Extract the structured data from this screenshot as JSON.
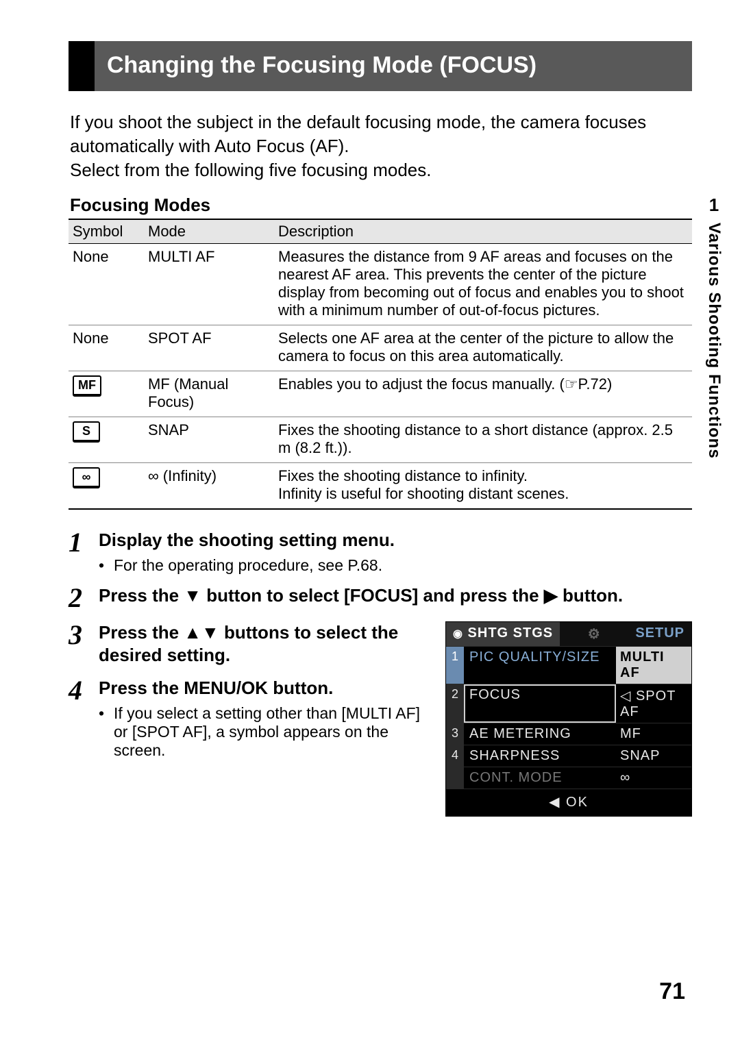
{
  "title": "Changing the Focusing Mode (FOCUS)",
  "intro": "If you shoot the subject in the default focusing mode, the camera focuses automatically with Auto Focus (AF).\nSelect from the following five focusing modes.",
  "subhead": "Focusing Modes",
  "table": {
    "headers": [
      "Symbol",
      "Mode",
      "Description"
    ],
    "rows": [
      {
        "symbol_text": "None",
        "symbol_glyph": "",
        "mode": "MULTI AF",
        "desc": "Measures the distance from 9 AF areas and focuses on the nearest AF area. This prevents the center of the picture display from becoming out of focus and enables you to shoot with a minimum number of out-of-focus pictures."
      },
      {
        "symbol_text": "None",
        "symbol_glyph": "",
        "mode": "SPOT AF",
        "desc": "Selects one AF area at the center of the picture to allow the camera to focus on this area automatically."
      },
      {
        "symbol_text": "",
        "symbol_glyph": "MF",
        "mode": "MF (Manual Focus)",
        "desc": "Enables you to adjust the focus manually. (☞P.72)"
      },
      {
        "symbol_text": "",
        "symbol_glyph": "S",
        "mode": "SNAP",
        "desc": "Fixes the shooting distance to a short distance (approx. 2.5 m (8.2 ft.))."
      },
      {
        "symbol_text": "",
        "symbol_glyph": "∞",
        "mode": "∞ (Infinity)",
        "desc": "Fixes the shooting distance to infinity.\nInfinity is useful for shooting distant scenes."
      }
    ]
  },
  "steps": [
    {
      "n": "1",
      "head": "Display the shooting setting menu.",
      "sub": "For the operating procedure, see P.68."
    },
    {
      "n": "2",
      "head": "Press the ▼ button to select [FOCUS] and press the ▶ button.",
      "sub": ""
    },
    {
      "n": "3",
      "head": "Press the ▲▼ buttons to select the desired setting.",
      "sub": ""
    },
    {
      "n": "4",
      "head": "Press the MENU/OK button.",
      "sub": "If you select a setting other than [MULTI AF] or [SPOT AF], a symbol appears on the screen."
    }
  ],
  "lcd": {
    "tab_active": "SHTG STGS",
    "tab_mid_icon": "⚙",
    "tab_setup": "SETUP",
    "rows": [
      {
        "n": "1",
        "label": "PIC QUALITY/SIZE",
        "value": "MULTI AF",
        "sel_n": true,
        "sel_l": true,
        "block": true
      },
      {
        "n": "2",
        "label": "FOCUS",
        "value": "SPOT AF",
        "hi": true,
        "arrow": "◁"
      },
      {
        "n": "3",
        "label": "AE METERING",
        "value": "MF"
      },
      {
        "n": "4",
        "label": "SHARPNESS",
        "value": "SNAP"
      },
      {
        "n": "",
        "label": "CONT. MODE",
        "value": "∞"
      }
    ],
    "footer": "◀ OK"
  },
  "sidetab": {
    "num": "1",
    "label": "Various Shooting Functions"
  },
  "page_number": "71",
  "colors": {
    "title_bg": "#595959",
    "header_row_bg": "#e6e6e6",
    "lcd_bg": "#000000",
    "lcd_accent": "#88aed6"
  }
}
